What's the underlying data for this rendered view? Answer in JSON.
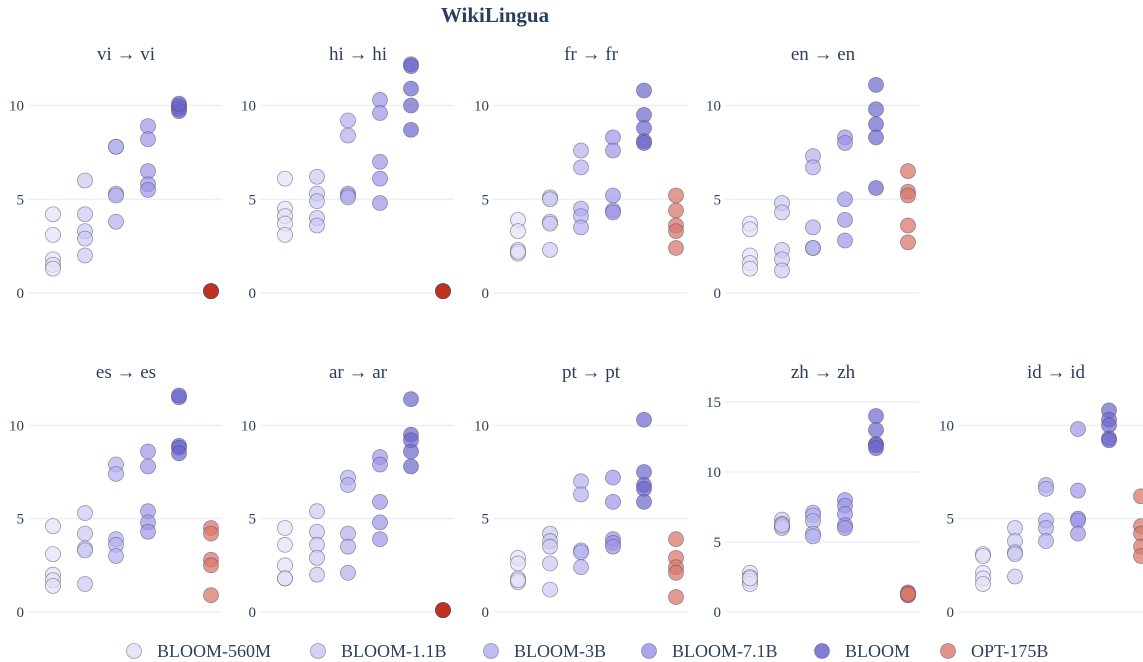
{
  "title": "WikiLingua",
  "colors": {
    "BLOOM-560M": "#e2e1f6",
    "BLOOM-1.1B": "#cbc9f2",
    "BLOOM-3B": "#b4b0ee",
    "BLOOM-7.1B": "#9c96e8",
    "BLOOM": "#6c66cc",
    "OPT-175B": "#d9786c"
  },
  "chart_data": {
    "type": "scatter",
    "title": "WikiLingua",
    "legend_position": "bottom",
    "legend": [
      "BLOOM-560M",
      "BLOOM-1.1B",
      "BLOOM-3B",
      "BLOOM-7.1B",
      "BLOOM",
      "OPT-175B"
    ],
    "grid": true,
    "panels": [
      {
        "title": "vi → vi",
        "ylim": [
          0,
          12
        ],
        "yticks": [
          0,
          5,
          10
        ],
        "series": [
          {
            "name": "BLOOM-560M",
            "values": [
              4.2,
              3.1,
              1.8,
              1.5,
              1.3
            ]
          },
          {
            "name": "BLOOM-1.1B",
            "values": [
              6.0,
              4.2,
              3.3,
              2.9,
              2.0
            ]
          },
          {
            "name": "BLOOM-3B",
            "values": [
              7.8,
              7.8,
              5.3,
              5.2,
              3.8
            ]
          },
          {
            "name": "BLOOM-7.1B",
            "values": [
              8.9,
              8.2,
              6.5,
              5.8,
              5.5
            ]
          },
          {
            "name": "BLOOM",
            "values": [
              10.0,
              9.9,
              9.8,
              9.7,
              10.1
            ]
          },
          {
            "name": "OPT-175B",
            "values": [
              0.1,
              0.1,
              0.1,
              0.1,
              0.1
            ]
          }
        ]
      },
      {
        "title": "hi → hi",
        "ylim": [
          0,
          12
        ],
        "yticks": [
          0,
          5,
          10
        ],
        "series": [
          {
            "name": "BLOOM-560M",
            "values": [
              6.1,
              4.5,
              4.1,
              3.7,
              3.1
            ]
          },
          {
            "name": "BLOOM-1.1B",
            "values": [
              6.2,
              5.3,
              4.9,
              4.0,
              3.6
            ]
          },
          {
            "name": "BLOOM-3B",
            "values": [
              9.2,
              8.4,
              5.3,
              5.2,
              5.1
            ]
          },
          {
            "name": "BLOOM-7.1B",
            "values": [
              10.3,
              9.6,
              7.0,
              6.1,
              4.8
            ]
          },
          {
            "name": "BLOOM",
            "values": [
              12.2,
              10.9,
              10.0,
              8.7,
              12.1
            ]
          },
          {
            "name": "OPT-175B",
            "values": [
              0.1,
              0.1,
              0.1,
              0.1,
              0.1
            ]
          }
        ]
      },
      {
        "title": "fr → fr",
        "ylim": [
          0,
          12
        ],
        "yticks": [
          0,
          5,
          10
        ],
        "series": [
          {
            "name": "BLOOM-560M",
            "values": [
              3.9,
              3.3,
              2.3,
              2.1,
              2.2
            ]
          },
          {
            "name": "BLOOM-1.1B",
            "values": [
              5.1,
              5.0,
              3.8,
              3.7,
              2.3
            ]
          },
          {
            "name": "BLOOM-3B",
            "values": [
              7.6,
              6.7,
              4.5,
              4.1,
              3.5
            ]
          },
          {
            "name": "BLOOM-7.1B",
            "values": [
              8.3,
              7.6,
              5.2,
              4.4,
              4.3
            ]
          },
          {
            "name": "BLOOM",
            "values": [
              10.8,
              9.5,
              8.8,
              8.1,
              8.0
            ]
          },
          {
            "name": "OPT-175B",
            "values": [
              5.2,
              4.4,
              3.6,
              3.3,
              2.4
            ]
          }
        ]
      },
      {
        "title": "en → en",
        "ylim": [
          0,
          12
        ],
        "yticks": [
          0,
          5,
          10
        ],
        "series": [
          {
            "name": "BLOOM-560M",
            "values": [
              3.7,
              3.4,
              2.0,
              1.6,
              1.3
            ]
          },
          {
            "name": "BLOOM-1.1B",
            "values": [
              4.8,
              4.3,
              2.3,
              1.8,
              1.2
            ]
          },
          {
            "name": "BLOOM-3B",
            "values": [
              7.3,
              6.7,
              3.5,
              2.4,
              2.4
            ]
          },
          {
            "name": "BLOOM-7.1B",
            "values": [
              8.3,
              8.0,
              5.0,
              3.9,
              2.8
            ]
          },
          {
            "name": "BLOOM",
            "values": [
              11.1,
              9.8,
              9.0,
              8.3,
              5.6
            ]
          },
          {
            "name": "OPT-175B",
            "values": [
              6.5,
              5.4,
              5.2,
              3.6,
              2.7
            ]
          }
        ]
      },
      {
        "title": "es → es",
        "ylim": [
          0,
          12
        ],
        "yticks": [
          0,
          5,
          10
        ],
        "series": [
          {
            "name": "BLOOM-560M",
            "values": [
              4.6,
              3.1,
              2.0,
              1.7,
              1.4
            ]
          },
          {
            "name": "BLOOM-1.1B",
            "values": [
              5.3,
              4.2,
              3.4,
              3.3,
              1.5
            ]
          },
          {
            "name": "BLOOM-3B",
            "values": [
              7.9,
              7.4,
              3.9,
              3.6,
              3.0
            ]
          },
          {
            "name": "BLOOM-7.1B",
            "values": [
              8.6,
              7.8,
              5.4,
              4.8,
              4.3
            ]
          },
          {
            "name": "BLOOM",
            "values": [
              11.5,
              11.6,
              8.9,
              8.8,
              8.5
            ]
          },
          {
            "name": "OPT-175B",
            "values": [
              4.5,
              4.2,
              2.8,
              2.5,
              0.9
            ]
          }
        ]
      },
      {
        "title": "ar → ar",
        "ylim": [
          0,
          12
        ],
        "yticks": [
          0,
          5,
          10
        ],
        "series": [
          {
            "name": "BLOOM-560M",
            "values": [
              4.5,
              3.6,
              2.5,
              1.8,
              1.8
            ]
          },
          {
            "name": "BLOOM-1.1B",
            "values": [
              5.4,
              4.3,
              3.6,
              2.9,
              2.0
            ]
          },
          {
            "name": "BLOOM-3B",
            "values": [
              7.2,
              6.8,
              4.2,
              3.5,
              2.1
            ]
          },
          {
            "name": "BLOOM-7.1B",
            "values": [
              8.3,
              7.9,
              5.9,
              4.8,
              3.9
            ]
          },
          {
            "name": "BLOOM",
            "values": [
              11.4,
              9.5,
              9.2,
              8.6,
              7.8
            ]
          },
          {
            "name": "OPT-175B",
            "values": [
              0.1,
              0.1,
              0.1,
              0.1,
              0.1
            ]
          }
        ]
      },
      {
        "title": "pt → pt",
        "ylim": [
          0,
          12
        ],
        "yticks": [
          0,
          5,
          10
        ],
        "series": [
          {
            "name": "BLOOM-560M",
            "values": [
              2.9,
              2.6,
              1.8,
              1.6,
              1.7
            ]
          },
          {
            "name": "BLOOM-1.1B",
            "values": [
              4.2,
              3.8,
              3.5,
              2.6,
              1.2
            ]
          },
          {
            "name": "BLOOM-3B",
            "values": [
              7.0,
              6.3,
              3.3,
              3.2,
              2.4
            ]
          },
          {
            "name": "BLOOM-7.1B",
            "values": [
              7.2,
              5.9,
              3.9,
              3.7,
              3.5
            ]
          },
          {
            "name": "BLOOM",
            "values": [
              10.3,
              7.5,
              6.8,
              6.6,
              5.9
            ]
          },
          {
            "name": "OPT-175B",
            "values": [
              3.9,
              2.9,
              2.4,
              2.1,
              0.8
            ]
          }
        ]
      },
      {
        "title": "zh → zh",
        "ylim": [
          0,
          16
        ],
        "yticks": [
          0,
          5,
          10,
          15
        ],
        "series": [
          {
            "name": "BLOOM-560M",
            "values": [
              2.8,
              2.5,
              2.2,
              2.0,
              2.4
            ]
          },
          {
            "name": "BLOOM-1.1B",
            "values": [
              6.6,
              6.3,
              6.1,
              6.0,
              6.2
            ]
          },
          {
            "name": "BLOOM-3B",
            "values": [
              7.1,
              6.9,
              6.5,
              5.6,
              5.4
            ]
          },
          {
            "name": "BLOOM-7.1B",
            "values": [
              8.0,
              7.6,
              7.0,
              6.2,
              6.0
            ]
          },
          {
            "name": "BLOOM",
            "values": [
              14.0,
              13.0,
              12.0,
              11.9,
              11.7
            ]
          },
          {
            "name": "OPT-175B",
            "values": [
              1.4,
              1.3,
              1.2,
              1.2,
              1.3
            ]
          }
        ]
      },
      {
        "title": "id → id",
        "ylim": [
          0,
          12
        ],
        "yticks": [
          0,
          5,
          10
        ],
        "series": [
          {
            "name": "BLOOM-560M",
            "values": [
              3.1,
              3.0,
              2.1,
              1.8,
              1.5
            ]
          },
          {
            "name": "BLOOM-1.1B",
            "values": [
              4.5,
              3.8,
              3.2,
              3.1,
              1.9
            ]
          },
          {
            "name": "BLOOM-3B",
            "values": [
              6.8,
              6.6,
              4.9,
              4.5,
              3.8
            ]
          },
          {
            "name": "BLOOM-7.1B",
            "values": [
              9.8,
              6.5,
              5.0,
              4.9,
              4.2
            ]
          },
          {
            "name": "BLOOM",
            "values": [
              10.8,
              10.3,
              10.0,
              9.3,
              9.2
            ]
          },
          {
            "name": "OPT-175B",
            "values": [
              6.2,
              4.6,
              4.2,
              3.5,
              3.0
            ]
          }
        ]
      }
    ]
  }
}
